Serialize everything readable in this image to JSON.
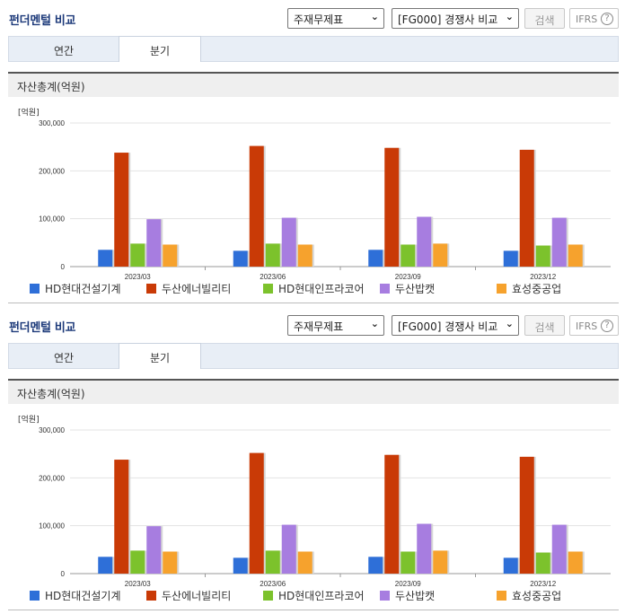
{
  "title": "펀더멘털 비교",
  "report_select": "주재무제표",
  "compare_select": "[FG000] 경쟁사 비교",
  "search_label": "검색",
  "ifrs_label": "IFRS",
  "help_glyph": "?",
  "tabs": [
    {
      "label": "연간",
      "active": false
    },
    {
      "label": "분기",
      "active": true
    }
  ],
  "chart_title": "자산총계(억원)",
  "unit_label": "[억원]",
  "colors": {
    "HD현대건설기계": "#2e6fd8",
    "두산에너빌리티": "#c93a06",
    "HD현대인프라코어": "#7cc22c",
    "두산밥캣": "#a77de0",
    "효성중공업": "#f6a22d"
  },
  "chart_data": {
    "type": "bar",
    "categories": [
      "2023/03",
      "2023/06",
      "2023/09",
      "2023/12"
    ],
    "series": [
      {
        "name": "HD현대건설기계",
        "values": [
          35000,
          33000,
          35000,
          33000
        ]
      },
      {
        "name": "두산에너빌리티",
        "values": [
          238000,
          252000,
          248000,
          244000
        ]
      },
      {
        "name": "HD현대인프라코어",
        "values": [
          48000,
          48000,
          46000,
          44000
        ]
      },
      {
        "name": "두산밥캣",
        "values": [
          99000,
          102000,
          104000,
          102000
        ]
      },
      {
        "name": "효성중공업",
        "values": [
          46000,
          46000,
          48000,
          46000
        ]
      }
    ],
    "y_ticks": [
      "0",
      "100,000",
      "200,000",
      "300,000"
    ],
    "ylim": [
      0,
      300000
    ],
    "title": "자산총계(억원)",
    "ylabel": "[억원]",
    "legend": "bottom"
  }
}
